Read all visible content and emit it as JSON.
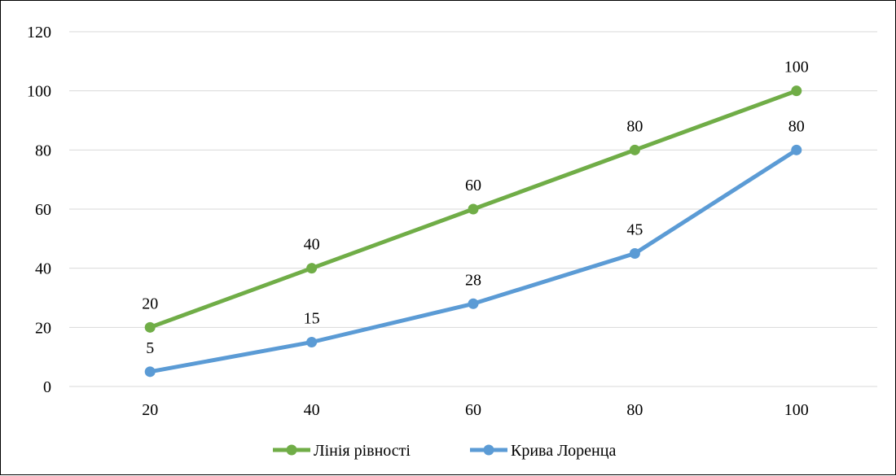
{
  "chart_data": {
    "type": "line",
    "title": "",
    "xlabel": "",
    "ylabel": "",
    "categories": [
      "20",
      "40",
      "60",
      "80",
      "100"
    ],
    "ylim": [
      0,
      120
    ],
    "yticks": [
      0,
      20,
      40,
      60,
      80,
      100,
      120
    ],
    "grid": true,
    "legend_position": "bottom",
    "series": [
      {
        "name": "Лінія рівності",
        "values": [
          20,
          40,
          60,
          80,
          100
        ],
        "color": "#70ad47"
      },
      {
        "name": "Крива Лоренца",
        "values": [
          5,
          15,
          28,
          45,
          80
        ],
        "color": "#5b9bd5"
      }
    ]
  }
}
